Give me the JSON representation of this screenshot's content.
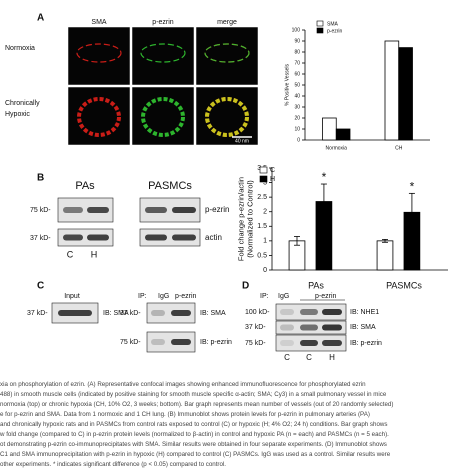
{
  "panel_a": {
    "label": "A",
    "columns": [
      "SMA",
      "p-ezrin",
      "merge"
    ],
    "row_labels": [
      [
        "Normoxia"
      ],
      [
        "Chronically",
        "Hypoxic"
      ]
    ],
    "scale_bar": "40 nm"
  },
  "chart_data": [
    {
      "type": "bar",
      "y_label": [
        "% Positive Vessels"
      ],
      "categories": [
        "Normoxia",
        "CH"
      ],
      "series": [
        {
          "name": "SMA",
          "color": "#ffffff",
          "values": [
            20,
            90
          ]
        },
        {
          "name": "p-ezrin",
          "color": "#000000",
          "values": [
            10,
            84
          ]
        }
      ],
      "ylim": [
        0,
        100
      ],
      "yticks": [
        0,
        10,
        20,
        30,
        40,
        50,
        60,
        70,
        80,
        90,
        100
      ],
      "legend": "upper left"
    },
    {
      "type": "bar",
      "y_label": [
        "Fold change p-ezrin/actin",
        "(Normalized to Control)"
      ],
      "categories": [
        "PAs",
        "PASMCs"
      ],
      "series": [
        {
          "name": "C",
          "color": "#ffffff",
          "values": [
            1.0,
            1.0
          ],
          "errors": [
            0.15,
            0.05
          ]
        },
        {
          "name": "H",
          "color": "#000000",
          "values": [
            2.35,
            1.98
          ],
          "errors": [
            0.6,
            0.65
          ],
          "annotations": [
            "*",
            "*"
          ]
        }
      ],
      "ylim": [
        0,
        3.5
      ],
      "yticks": [
        0,
        0.5,
        1,
        1.5,
        2,
        2.5,
        3,
        3.5
      ],
      "legend": "upper left"
    }
  ],
  "panel_b": {
    "label": "B",
    "groups": [
      "PAs",
      "PASMCs"
    ],
    "markers": [
      "75 kD-",
      "37 kD-"
    ],
    "bands": [
      "p-ezrin",
      "actin"
    ],
    "lanes": [
      "C",
      "H"
    ]
  },
  "panel_c": {
    "label": "C",
    "input_title": "Input",
    "input_marker": "37 kD-",
    "input_blot": "IB: SMA",
    "ip": "IP:",
    "ip_lanes": [
      "IgG",
      "p-ezrin"
    ],
    "markers": [
      "37 kD-",
      "75 kD-"
    ],
    "blots": [
      "IB: SMA",
      "IB: p-ezrin"
    ]
  },
  "panel_d": {
    "label": "D",
    "ip": "IP:",
    "ip_lanes": [
      "IgG",
      "p-ezrin"
    ],
    "markers": [
      "100 kD-",
      "37 kD-",
      "75 kD-"
    ],
    "blots": [
      "IB: NHE1",
      "IB: SMA",
      "IB: p-ezrin"
    ],
    "lanes": [
      "C",
      "C",
      "H"
    ]
  },
  "caption": [
    "xia on phosphorylation of ezrin. (A) Representative confocal images showing enhanced immunofluorescence for phosphorylated ezrin",
    "488) in smooth muscle cells (indicated by positive staining for smooth muscle specific α-actin; SMA; Cy3) in a small pulmonary vessel in mice",
    "normoxia (top) or chronic hypoxia (CH, 10% O2, 3 weeks; bottom). Bar graph represents mean number of vessels (out of 20 randomly selected)",
    "e for p-ezrin and SMA. Data from 1 normoxic and 1 CH lung. (B) Immunoblot shows protein levels for p-ezrin in pulmonary arteries (PA)",
    "and chronically hypoxic rats and in PASMCs from control rats exposed to control (C) or hypoxic (H; 4% O2; 24 h) conditions. Bar graph shows",
    "w fold change (compared to C) in p-ezrin protein levels (normalized to β-actin) in control and hypoxic PA (n = each) and PASMCs (n = 5 each).",
    "ot demonstrating p-ezrin co-immunoprecipitates with SMA. Similar results were obtained in four separate experiments. (D) Immunoblot shows",
    "C1 and SMA immunoprecipitation with p-ezrin in hypoxic (H) compared to control (C) PASMCs. IgG was used as a control. Similar results were",
    "other experiments. * indicates significant difference (p < 0.05) compared to control."
  ]
}
